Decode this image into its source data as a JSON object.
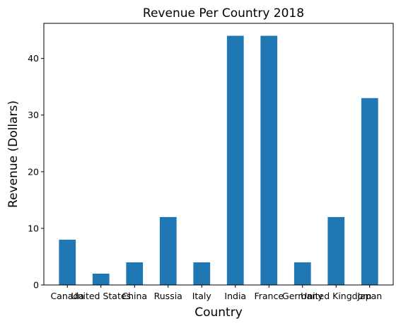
{
  "chart_data": {
    "type": "bar",
    "title": "Revenue Per Country 2018",
    "xlabel": "Country",
    "ylabel": "Revenue (Dollars)",
    "categories": [
      "Canada",
      "United States",
      "China",
      "Russia",
      "Italy",
      "India",
      "France",
      "Germany",
      "United Kingdom",
      "Japan"
    ],
    "values": [
      8,
      2,
      4,
      12,
      4,
      44,
      44,
      4,
      12,
      33
    ],
    "ylim": [
      0,
      46.2
    ],
    "yticks": [
      0,
      10,
      20,
      30,
      40
    ],
    "grid": false,
    "legend": "none",
    "bar_color": "#1f77b4"
  }
}
